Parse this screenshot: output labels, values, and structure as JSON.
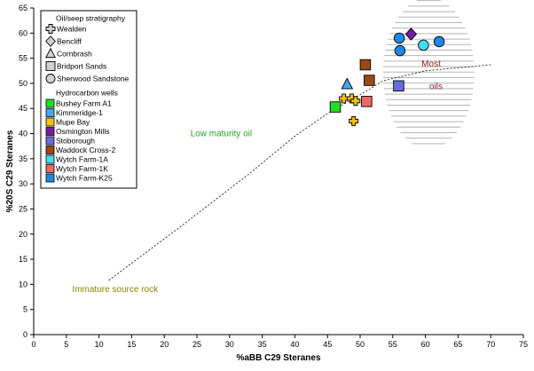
{
  "chart_data": {
    "type": "scatter",
    "title": "",
    "xlabel": "%aBB C29 Steranes",
    "ylabel": "%20S C29 Steranes",
    "xlim": [
      0,
      75
    ],
    "ylim": [
      0,
      65
    ],
    "x_ticks": [
      "0",
      "5",
      "10",
      "15",
      "20",
      "25",
      "30",
      "35",
      "40",
      "45",
      "50",
      "55",
      "60",
      "65",
      "70",
      "75"
    ],
    "y_ticks": [
      "0",
      "5",
      "10",
      "15",
      "20",
      "25",
      "30",
      "35",
      "40",
      "45",
      "50",
      "55",
      "60",
      "65"
    ],
    "grid": false,
    "legend_position": "top-left",
    "legend": {
      "stratigraphy_title": "Oil/seep stratigraphy",
      "stratigraphy": [
        {
          "label": "Wealden",
          "shape": "cross"
        },
        {
          "label": "Bencliff",
          "shape": "diamond"
        },
        {
          "label": "Cornbrash",
          "shape": "triangle"
        },
        {
          "label": "Bridport Sands",
          "shape": "square"
        },
        {
          "label": "Sherwood Sandstone",
          "shape": "circle"
        }
      ],
      "wells_title": "Hydrocarbon wells",
      "wells": [
        {
          "label": "Bushey Farm A1",
          "color": "#22dd22"
        },
        {
          "label": "Kimmeridge-1",
          "color": "#44aaee"
        },
        {
          "label": "Mupe Bay",
          "color": "#f5c018"
        },
        {
          "label": "Osmington Mills",
          "color": "#7a1aa0"
        },
        {
          "label": "Stoborough",
          "color": "#6b6bdd"
        },
        {
          "label": "Waddock Cross-2",
          "color": "#9a4a14"
        },
        {
          "label": "Wytch Farm-1A",
          "color": "#44ddee"
        },
        {
          "label": "Wytch Farm-1K",
          "color": "#f06666"
        },
        {
          "label": "Wytch Farm-K25",
          "color": "#1e88e5"
        }
      ]
    },
    "series": [
      {
        "name": "Wealden (seeps)",
        "shape": "cross",
        "color": "#f5c018",
        "points": [
          [
            47.5,
            47
          ],
          [
            48.7,
            47
          ],
          [
            49.3,
            46.5
          ],
          [
            49.0,
            42.5
          ]
        ]
      },
      {
        "name": "Bushey Farm A1",
        "shape": "square",
        "color": "#22dd22",
        "points": [
          [
            46.2,
            45.3
          ]
        ]
      },
      {
        "name": "Kimmeridge-1",
        "shape": "triangle",
        "color": "#44aaee",
        "points": [
          [
            48.0,
            49.8
          ]
        ]
      },
      {
        "name": "Osmington Mills",
        "shape": "diamond",
        "color": "#7a1aa0",
        "points": [
          [
            57.8,
            59.8
          ]
        ]
      },
      {
        "name": "Stoborough",
        "shape": "square",
        "color": "#6b6bdd",
        "points": [
          [
            55.9,
            49.5
          ]
        ]
      },
      {
        "name": "Waddock Cross-2",
        "shape": "square",
        "color": "#9a4a14",
        "points": [
          [
            50.8,
            53.7
          ],
          [
            51.4,
            50.6
          ]
        ]
      },
      {
        "name": "Wytch Farm-1A",
        "shape": "circle",
        "color": "#44ddee",
        "points": [
          [
            59.7,
            57.6
          ]
        ]
      },
      {
        "name": "Wytch Farm-1K",
        "shape": "square",
        "color": "#f06666",
        "points": [
          [
            51.0,
            46.4
          ]
        ]
      },
      {
        "name": "Wytch Farm-K25",
        "shape": "circle",
        "color": "#1e88e5",
        "points": [
          [
            56.0,
            59.0
          ],
          [
            56.1,
            56.5
          ],
          [
            62.1,
            58.3
          ]
        ]
      }
    ],
    "maturity_trend": [
      [
        11.5,
        10.8
      ],
      [
        22,
        21
      ],
      [
        33,
        32
      ],
      [
        40,
        39.5
      ],
      [
        45,
        44
      ],
      [
        51,
        48.5
      ],
      [
        53.5,
        50.5
      ],
      [
        60,
        52.5
      ],
      [
        70,
        53.7
      ]
    ],
    "annotations": {
      "low_maturity": {
        "text": "Low maturity oil",
        "color": "#22aa22",
        "x": 24,
        "y": 39.5
      },
      "immature": {
        "text": "Immature source rock",
        "color": "#888800",
        "x": 5.9,
        "y": 8.5
      },
      "most": {
        "text": "Most",
        "color": "#8b1a1a",
        "x": 59.4,
        "y": 53.3
      },
      "oils": {
        "text": "oils",
        "color": "#8b1a1a",
        "x": 60.6,
        "y": 48.8
      }
    },
    "most_mature_region": {
      "center": [
        60.5,
        52
      ],
      "rx": 7,
      "ry": 15
    }
  }
}
